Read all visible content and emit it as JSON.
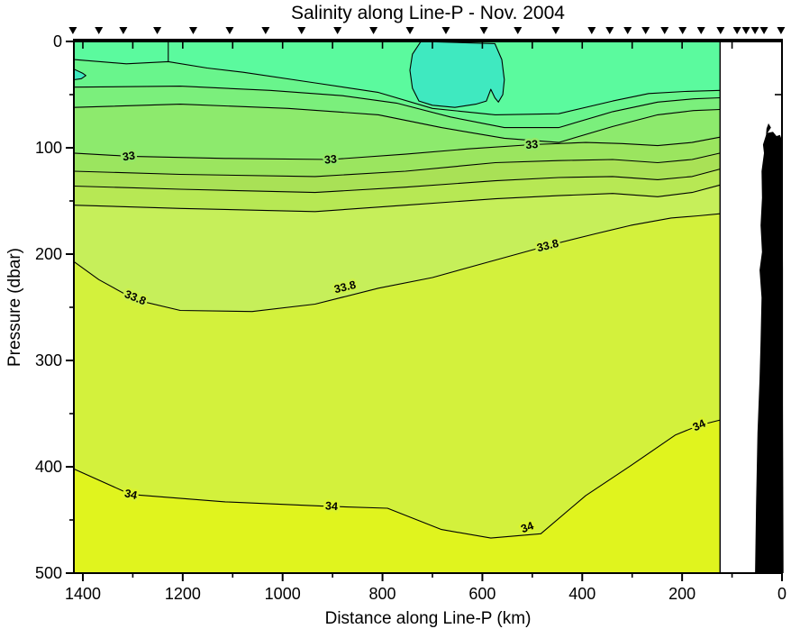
{
  "page": {
    "background": "#ffffff"
  },
  "chart_data": {
    "type": "contour",
    "title": "Salinity along Line-P - Nov. 2004",
    "xlabel": "Distance along Line-P (km)",
    "ylabel": "Pressure (dbar)",
    "x_axis": {
      "min": 0,
      "max": 1418,
      "reversed": true,
      "major_ticks": [
        1400,
        1200,
        1000,
        800,
        600,
        400,
        200,
        0
      ],
      "minor_ticks": [
        1300,
        1100,
        900,
        700,
        500,
        300,
        100
      ],
      "top_inner_tick_step_km": 100
    },
    "y_axis": {
      "min": 0,
      "max": 500,
      "major_ticks": [
        0,
        100,
        200,
        300,
        400,
        500
      ],
      "minor_ticks": [
        50,
        150,
        250,
        350,
        450
      ],
      "right_inner_tick_step_dbar": 50
    },
    "data_extent_km": [
      124,
      1418
    ],
    "contour_interval": 0.2,
    "labeled_levels": [
      33,
      33.8,
      34
    ],
    "surface_color": "#5bfa9e",
    "fresh_core_color": "#3fe9c0",
    "frame_color": "#000000",
    "station_marker_color": "#000000",
    "bathymetry_color": "#000000",
    "surface_outcrop": {
      "km": 1229,
      "from_dbar": 0,
      "to_dbar": 19
    },
    "contours": [
      {
        "level": 32.4,
        "fill_below": "#69f58c",
        "points": [
          [
            1418,
            17
          ],
          [
            1313,
            21
          ],
          [
            1229,
            19
          ],
          [
            1151,
            25
          ],
          [
            1079,
            29
          ],
          [
            935,
            39
          ],
          [
            808,
            48
          ],
          [
            700,
            63
          ],
          [
            574,
            69
          ],
          [
            447,
            68
          ],
          [
            339,
            56
          ],
          [
            267,
            49
          ],
          [
            195,
            47
          ],
          [
            124,
            46
          ]
        ]
      },
      {
        "level": 32.6,
        "fill_below": "#7bef7c",
        "points": [
          [
            1418,
            43
          ],
          [
            1205,
            42
          ],
          [
            1025,
            46
          ],
          [
            880,
            51
          ],
          [
            772,
            58
          ],
          [
            664,
            71
          ],
          [
            556,
            81
          ],
          [
            447,
            81
          ],
          [
            339,
            66
          ],
          [
            249,
            57
          ],
          [
            177,
            54
          ],
          [
            124,
            53
          ]
        ]
      },
      {
        "level": 32.8,
        "fill_below": "#8dea6d",
        "points": [
          [
            1418,
            62
          ],
          [
            1205,
            59
          ],
          [
            989,
            63
          ],
          [
            808,
            69
          ],
          [
            682,
            81
          ],
          [
            556,
            91
          ],
          [
            447,
            95
          ],
          [
            339,
            80
          ],
          [
            249,
            69
          ],
          [
            177,
            65
          ],
          [
            124,
            64
          ]
        ]
      },
      {
        "level": 33.0,
        "fill_below": "#9be55f",
        "points": [
          [
            1418,
            105
          ],
          [
            1308,
            108
          ],
          [
            1115,
            110
          ],
          [
            904,
            111
          ],
          [
            754,
            106
          ],
          [
            628,
            101
          ],
          [
            501,
            97
          ],
          [
            393,
            95
          ],
          [
            321,
            96
          ],
          [
            249,
            98
          ],
          [
            180,
            95
          ],
          [
            124,
            90
          ]
        ]
      },
      {
        "level": 33.2,
        "fill_below": "#a9e156",
        "points": [
          [
            1418,
            122
          ],
          [
            1205,
            125
          ],
          [
            935,
            127
          ],
          [
            754,
            122
          ],
          [
            574,
            114
          ],
          [
            447,
            112
          ],
          [
            339,
            111
          ],
          [
            249,
            114
          ],
          [
            180,
            111
          ],
          [
            124,
            105
          ]
        ]
      },
      {
        "level": 33.4,
        "fill_below": "#b7e854",
        "points": [
          [
            1418,
            136
          ],
          [
            1205,
            139
          ],
          [
            935,
            142
          ],
          [
            754,
            137
          ],
          [
            574,
            131
          ],
          [
            447,
            128
          ],
          [
            339,
            127
          ],
          [
            249,
            130
          ],
          [
            180,
            127
          ],
          [
            124,
            120
          ]
        ]
      },
      {
        "level": 33.6,
        "fill_below": "#c6ef5a",
        "points": [
          [
            1418,
            154
          ],
          [
            1205,
            157
          ],
          [
            935,
            160
          ],
          [
            754,
            154
          ],
          [
            574,
            148
          ],
          [
            447,
            145
          ],
          [
            339,
            143
          ],
          [
            249,
            146
          ],
          [
            180,
            142
          ],
          [
            124,
            135
          ]
        ]
      },
      {
        "level": 33.8,
        "fill_below": "#d3f13c",
        "points": [
          [
            1418,
            207
          ],
          [
            1368,
            224
          ],
          [
            1295,
            243
          ],
          [
            1205,
            253
          ],
          [
            1061,
            254
          ],
          [
            935,
            247
          ],
          [
            808,
            232
          ],
          [
            700,
            222
          ],
          [
            592,
            208
          ],
          [
            469,
            192
          ],
          [
            375,
            181
          ],
          [
            303,
            173
          ],
          [
            222,
            166
          ],
          [
            168,
            164
          ],
          [
            124,
            162
          ]
        ]
      },
      {
        "level": 34.0,
        "fill_below": "#e0f41e",
        "points": [
          [
            1418,
            402
          ],
          [
            1304,
            426
          ],
          [
            1115,
            433
          ],
          [
            917,
            437
          ],
          [
            790,
            439
          ],
          [
            682,
            459
          ],
          [
            583,
            467
          ],
          [
            483,
            463
          ],
          [
            393,
            427
          ],
          [
            303,
            399
          ],
          [
            213,
            370
          ],
          [
            166,
            361
          ],
          [
            124,
            356
          ]
        ]
      }
    ],
    "closed_contours": [
      {
        "level": 32.2,
        "color": "#3fe9c0",
        "points": [
          [
            723,
            0
          ],
          [
            740,
            12
          ],
          [
            745,
            27
          ],
          [
            740,
            44
          ],
          [
            727,
            56
          ],
          [
            700,
            60
          ],
          [
            655,
            62
          ],
          [
            613,
            59
          ],
          [
            592,
            56
          ],
          [
            583,
            45
          ],
          [
            575,
            53
          ],
          [
            568,
            57
          ],
          [
            559,
            50
          ],
          [
            556,
            36
          ],
          [
            561,
            17
          ],
          [
            575,
            2
          ]
        ]
      },
      {
        "level": 32.2,
        "color": "#3fe9c0",
        "points": [
          [
            1418,
            26
          ],
          [
            1400,
            30
          ],
          [
            1394,
            32
          ],
          [
            1403,
            35
          ],
          [
            1418,
            36
          ]
        ]
      }
    ],
    "contour_labels": [
      {
        "text": "33",
        "km": 1308,
        "dbar": 108,
        "rot": -8,
        "halo": "#94e766"
      },
      {
        "text": "33",
        "km": 904,
        "dbar": 111,
        "rot": -5,
        "halo": "#94e766"
      },
      {
        "text": "33",
        "km": 501,
        "dbar": 97,
        "rot": -5,
        "halo": "#94e766"
      },
      {
        "text": "33.8",
        "km": 1295,
        "dbar": 241,
        "rot": 22,
        "halo": "#ccf04b"
      },
      {
        "text": "33.8",
        "km": 875,
        "dbar": 231,
        "rot": -14,
        "halo": "#ccf04b"
      },
      {
        "text": "33.8",
        "km": 469,
        "dbar": 192,
        "rot": -14,
        "halo": "#ccf04b"
      },
      {
        "text": "34",
        "km": 1304,
        "dbar": 426,
        "rot": 12,
        "halo": "#daf32d"
      },
      {
        "text": "34",
        "km": 902,
        "dbar": 437,
        "rot": 4,
        "halo": "#daf32d"
      },
      {
        "text": "34",
        "km": 510,
        "dbar": 457,
        "rot": -20,
        "halo": "#daf32d"
      },
      {
        "text": "34",
        "km": 166,
        "dbar": 361,
        "rot": -25,
        "halo": "#daf32d"
      }
    ],
    "stations_km": [
      1420,
      1368,
      1319,
      1251,
      1179,
      1106,
      1034,
      962,
      890,
      818,
      745,
      673,
      597,
      529,
      453,
      381,
      345,
      309,
      273,
      235,
      199,
      162,
      123,
      90,
      72,
      54,
      36,
      2
    ],
    "bathymetry": [
      [
        27,
        77
      ],
      [
        22,
        81
      ],
      [
        29,
        86
      ],
      [
        18,
        85
      ],
      [
        11,
        89
      ],
      [
        4,
        88
      ],
      [
        0,
        93
      ],
      [
        -1,
        131
      ],
      [
        -2,
        215
      ],
      [
        -2,
        342
      ],
      [
        -3,
        500
      ],
      [
        54,
        500
      ],
      [
        52,
        436
      ],
      [
        49,
        368
      ],
      [
        45,
        317
      ],
      [
        43,
        283
      ],
      [
        41,
        241
      ],
      [
        45,
        215
      ],
      [
        40,
        198
      ],
      [
        43,
        173
      ],
      [
        40,
        147
      ],
      [
        41,
        122
      ],
      [
        36,
        105
      ],
      [
        38,
        97
      ],
      [
        32,
        88
      ],
      [
        31,
        82
      ]
    ]
  }
}
